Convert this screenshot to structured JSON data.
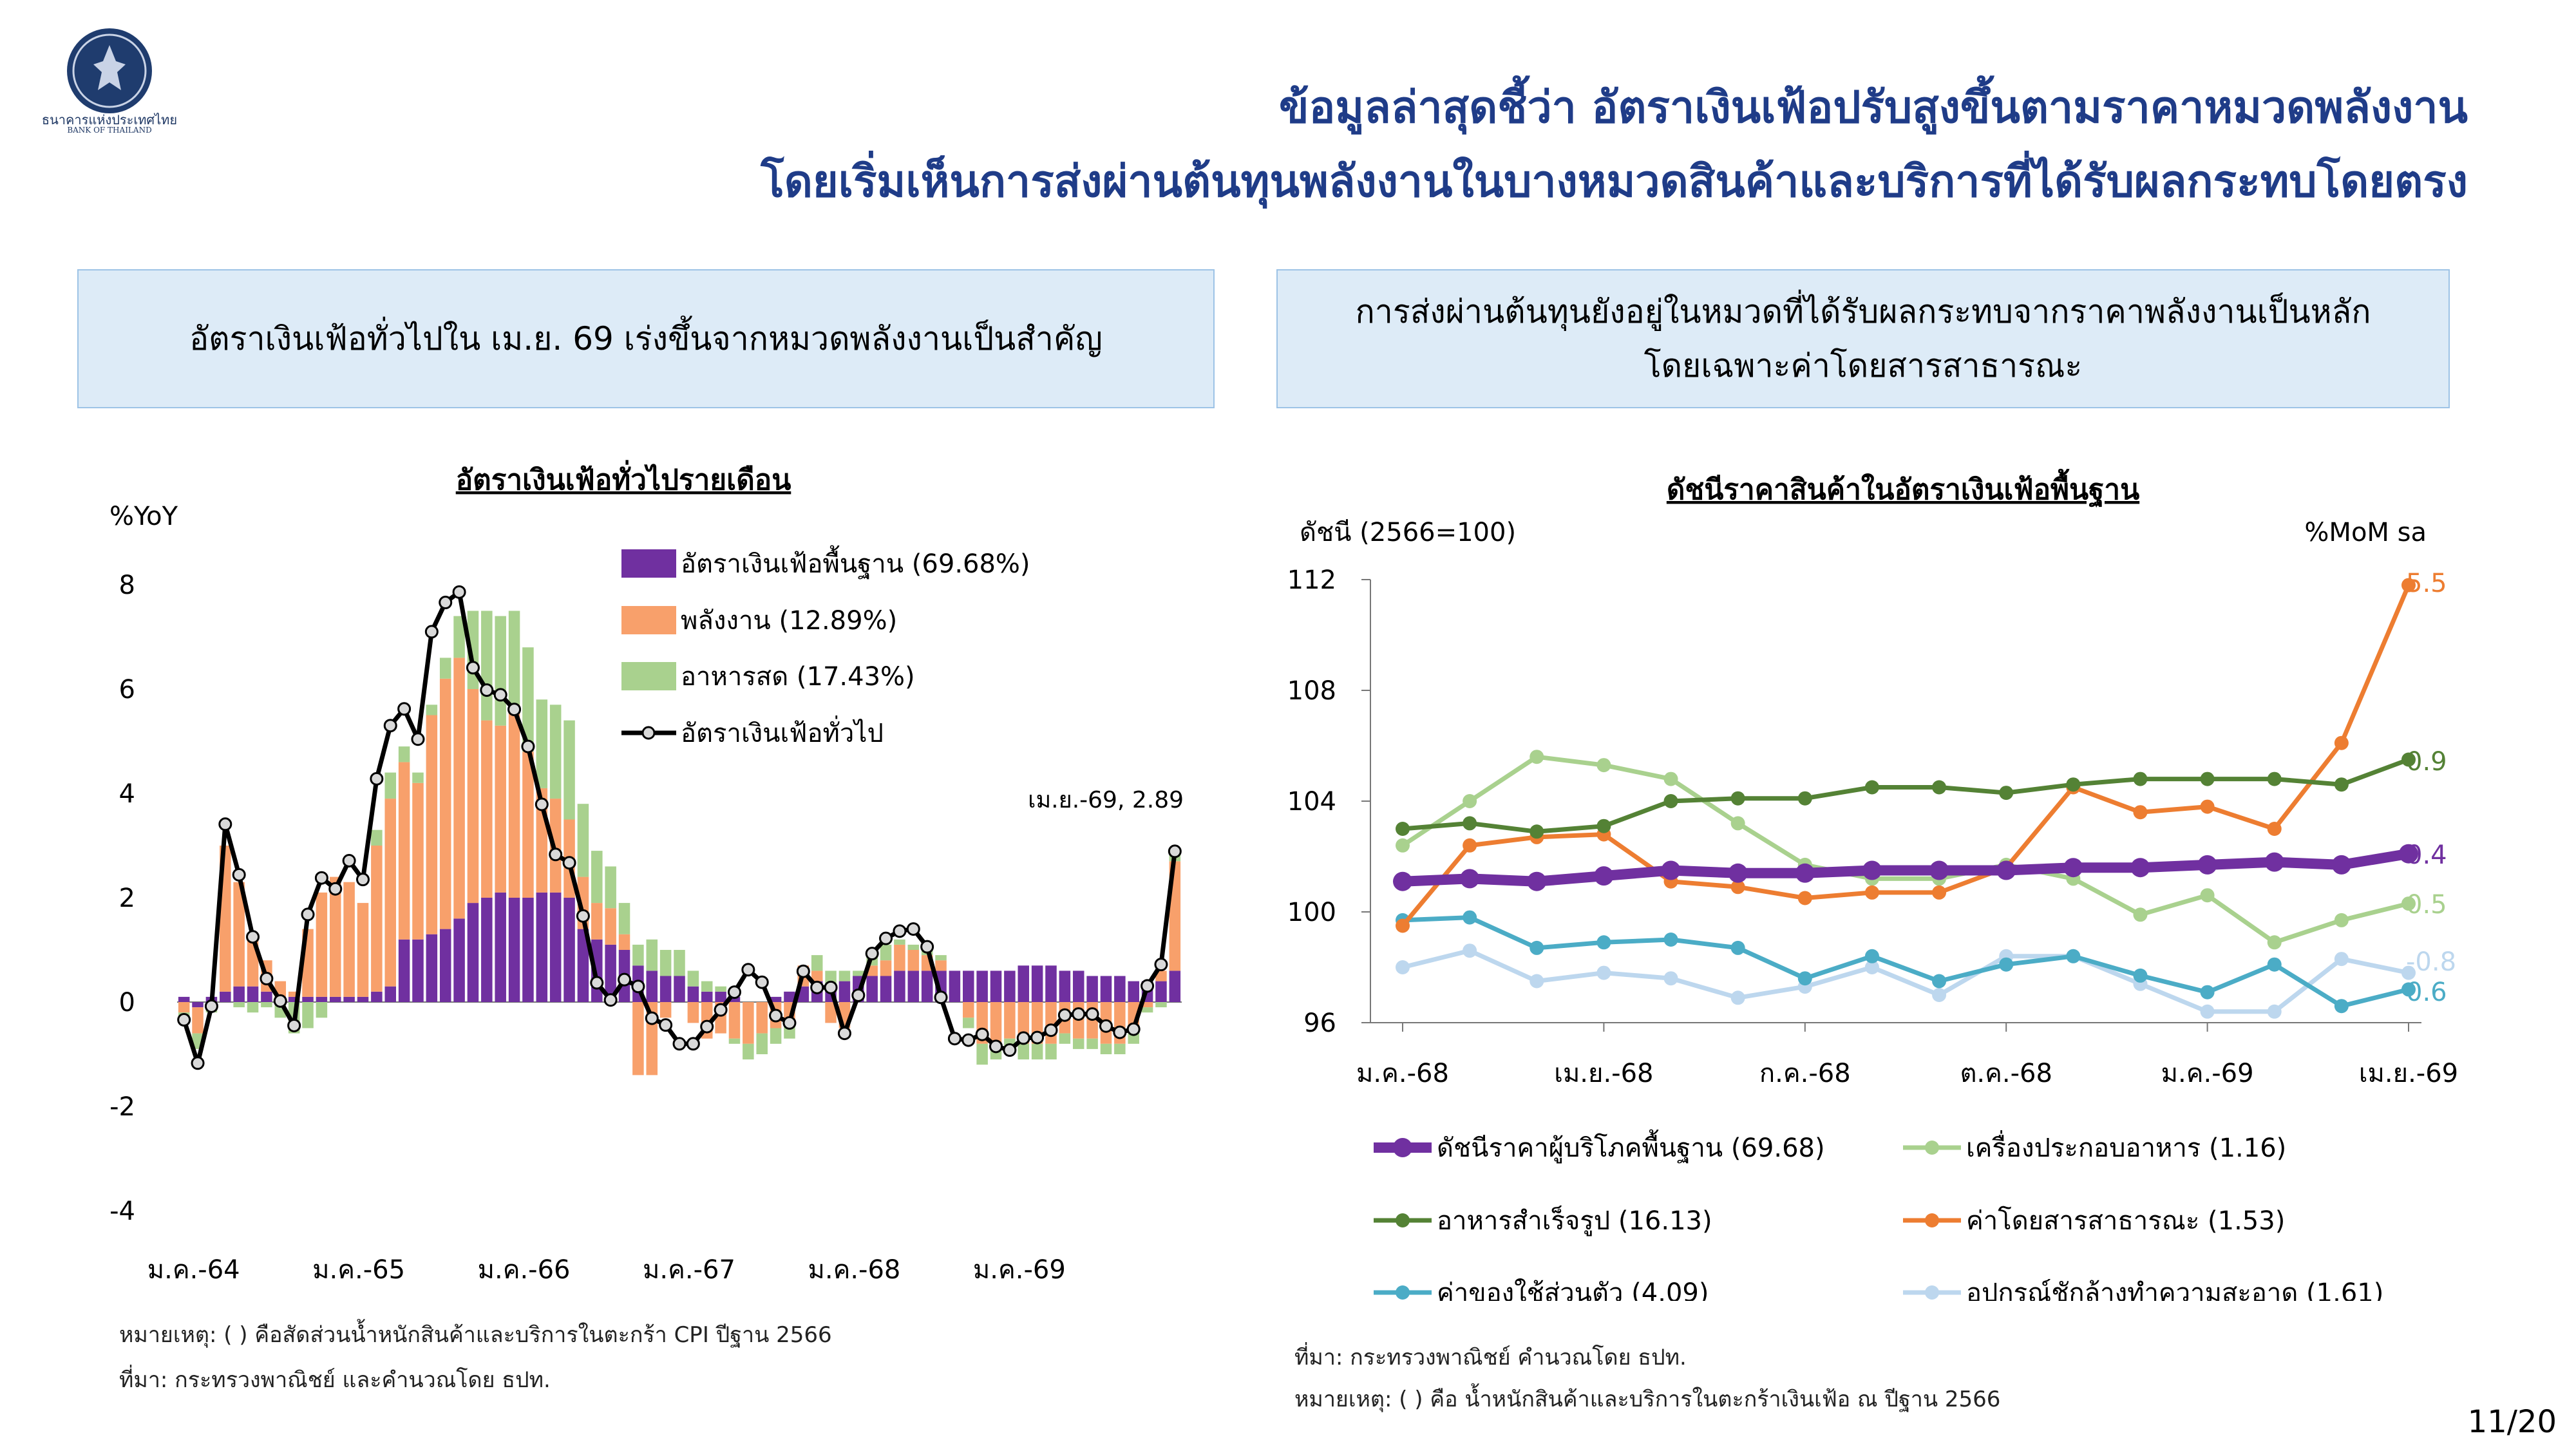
{
  "logo": {
    "name_th": "ธนาคารแห่งประเทศไทย",
    "name_en": "BANK OF THAILAND"
  },
  "title": {
    "line1": "ข้อมูลล่าสุดชี้ว่า อัตราเงินเฟ้อปรับสูงขึ้นตามราคาหมวดพลังงาน",
    "line2": "โดยเริ่มเห็นการส่งผ่านต้นทุนพลังงานในบางหมวดสินค้าและบริการที่ได้รับผลกระทบโดยตรง"
  },
  "left_box": {
    "text": "อัตราเงินเฟ้อทั่วไปใน เม.ย. 69 เร่งขึ้นจากหมวดพลังงานเป็นสำคัญ"
  },
  "right_box": {
    "line1": "การส่งผ่านต้นทุนยังอยู่ในหมวดที่ได้รับผลกระทบจากราคาพลังงานเป็นหลัก",
    "line2": "โดยเฉพาะค่าโดยสารสาธารณะ"
  },
  "left_notes": {
    "note": "หมายเหตุ: ( ) คือสัดส่วนน้ำหนักสินค้าและบริการในตะกร้า CPI ปีฐาน 2566",
    "source": "ที่มา: กระทรวงพาณิชย์ และคำนวณโดย ธปท."
  },
  "right_notes": {
    "source": "ที่มา: กระทรวงพาณิชย์ คำนวณโดย ธปท.",
    "note": "หมายเหตุ: ( ) คือ น้ำหนักสินค้าและบริการในตะกร้าเงินเฟ้อ ณ ปีฐาน 2566"
  },
  "page": "11/20",
  "chart_data": [
    {
      "type": "bar",
      "title": "อัตราเงินเฟ้อทั่วไปรายเดือน",
      "ylabel": "%YoY",
      "ylim": [
        -4,
        8
      ],
      "yticks": [
        -4,
        -2,
        0,
        2,
        4,
        6,
        8
      ],
      "xtick_labels": [
        "ม.ค.-64",
        "ม.ค.-65",
        "ม.ค.-66",
        "ม.ค.-67",
        "ม.ค.-68",
        "ม.ค.-69"
      ],
      "stacked": true,
      "annotation": "เม.ย.-69, 2.89",
      "series": [
        {
          "name": "อัตราเงินเฟ้อพื้นฐาน (69.68%)",
          "kind": "bar",
          "color": "#7030a0",
          "values": [
            0.1,
            -0.1,
            0.1,
            0.2,
            0.3,
            0.3,
            0.2,
            0.1,
            0.1,
            0.1,
            0.1,
            0.1,
            0.1,
            0.1,
            0.2,
            0.3,
            1.2,
            1.2,
            1.3,
            1.4,
            1.6,
            1.9,
            2.0,
            2.1,
            2.0,
            2.0,
            2.1,
            2.1,
            2.0,
            1.4,
            1.2,
            1.1,
            1.0,
            0.7,
            0.6,
            0.5,
            0.5,
            0.3,
            0.2,
            0.2,
            0.1,
            0.0,
            0.0,
            0.1,
            0.2,
            0.3,
            0.4,
            0.3,
            0.4,
            0.5,
            0.5,
            0.5,
            0.6,
            0.6,
            0.6,
            0.6,
            0.6,
            0.6,
            0.6,
            0.6,
            0.6,
            0.7,
            0.7,
            0.7,
            0.6,
            0.6,
            0.5,
            0.5,
            0.5,
            0.4,
            0.4,
            0.4,
            0.6
          ]
        },
        {
          "name": "พลังงาน (12.89%)",
          "kind": "bar",
          "color": "#f8a06b",
          "values": [
            -0.2,
            -0.5,
            0.0,
            2.8,
            2.0,
            1.0,
            0.6,
            0.3,
            0.1,
            1.3,
            2.0,
            2.3,
            2.2,
            1.8,
            2.8,
            3.6,
            3.4,
            3.0,
            4.2,
            4.8,
            5.0,
            4.1,
            3.4,
            3.2,
            3.7,
            2.8,
            2.0,
            1.8,
            1.5,
            1.0,
            0.7,
            0.7,
            0.3,
            -1.4,
            -1.4,
            -0.3,
            0.0,
            -0.4,
            -0.7,
            -0.6,
            -0.7,
            -0.8,
            -0.6,
            -0.5,
            -0.4,
            0.4,
            0.2,
            -0.4,
            -0.5,
            0.0,
            0.2,
            0.3,
            0.5,
            0.4,
            0.3,
            0.2,
            0.0,
            -0.3,
            -0.8,
            -0.8,
            -0.7,
            -0.8,
            -0.8,
            -0.8,
            -0.6,
            -0.7,
            -0.7,
            -0.8,
            -0.8,
            -0.5,
            -0.1,
            0.2,
            2.1
          ]
        },
        {
          "name": "อาหารสด (17.43%)",
          "kind": "bar",
          "color": "#a9d18e",
          "values": [
            -0.2,
            -0.3,
            -0.2,
            0.0,
            -0.1,
            -0.2,
            -0.1,
            -0.3,
            -0.6,
            -0.5,
            -0.3,
            0.0,
            0.0,
            0.0,
            0.3,
            0.5,
            0.3,
            0.2,
            0.2,
            0.4,
            0.8,
            1.5,
            2.1,
            2.1,
            1.8,
            2.0,
            1.7,
            1.8,
            1.9,
            1.4,
            1.0,
            0.8,
            0.6,
            0.4,
            0.6,
            0.5,
            0.5,
            0.3,
            0.2,
            0.1,
            -0.1,
            -0.3,
            -0.4,
            -0.3,
            -0.3,
            0.0,
            0.3,
            0.3,
            0.2,
            0.1,
            0.2,
            0.3,
            0.1,
            0.1,
            0.2,
            0.1,
            0.0,
            -0.2,
            -0.4,
            -0.3,
            -0.2,
            -0.3,
            -0.3,
            -0.3,
            -0.2,
            -0.2,
            -0.2,
            -0.2,
            -0.2,
            -0.3,
            -0.1,
            -0.1,
            0.2
          ]
        },
        {
          "name": "อัตราเงินเฟ้อทั่วไป",
          "kind": "line",
          "color": "#000000",
          "values": [
            -0.34,
            -1.17,
            -0.08,
            3.41,
            2.44,
            1.25,
            0.45,
            0.02,
            -0.45,
            1.68,
            2.38,
            2.17,
            2.71,
            2.35,
            4.28,
            5.3,
            5.62,
            5.04,
            7.1,
            7.66,
            7.86,
            6.41,
            5.98,
            5.89,
            5.61,
            4.9,
            3.79,
            2.83,
            2.67,
            1.65,
            0.37,
            0.04,
            0.43,
            0.3,
            -0.31,
            -0.44,
            -0.8,
            -0.8,
            -0.47,
            -0.15,
            0.19,
            0.62,
            0.38,
            -0.26,
            -0.4,
            0.59,
            0.28,
            0.28,
            -0.6,
            0.13,
            0.93,
            1.22,
            1.36,
            1.4,
            1.06,
            0.09,
            -0.7,
            -0.73,
            -0.62,
            -0.85,
            -0.92,
            -0.69,
            -0.68,
            -0.54,
            -0.25,
            -0.23,
            -0.23,
            -0.46,
            -0.58,
            -0.52,
            0.31,
            0.72,
            2.89
          ]
        }
      ]
    },
    {
      "type": "line",
      "title": "ดัชนีราคาสินค้าในอัตราเงินเฟ้อพื้นฐาน",
      "ylabel": "ดัชนี (2566=100)",
      "y2label": "%MoM sa",
      "ylim": [
        96,
        112
      ],
      "yticks": [
        96,
        100,
        104,
        108,
        112
      ],
      "xtick_labels": [
        "ม.ค.-68",
        "เม.ย.-68",
        "ก.ค.-68",
        "ต.ค.-68",
        "ม.ค.-69",
        "เม.ย.-69"
      ],
      "legend": "bottom",
      "series": [
        {
          "name": "ดัชนีราคาผู้บริโภคพื้นฐาน (69.68)",
          "color": "#7030a0",
          "end_label": "0.4",
          "values": [
            101.1,
            101.2,
            101.1,
            101.3,
            101.5,
            101.4,
            101.4,
            101.5,
            101.5,
            101.5,
            101.6,
            101.6,
            101.7,
            101.8,
            101.7,
            102.1
          ]
        },
        {
          "name": "เครื่องประกอบอาหาร (1.16)",
          "color": "#a9d18e",
          "end_label": "0.5",
          "values": [
            102.4,
            104.0,
            105.6,
            105.3,
            104.8,
            103.2,
            101.7,
            101.2,
            101.2,
            101.7,
            101.2,
            99.9,
            100.6,
            98.9,
            99.7,
            100.3
          ]
        },
        {
          "name": "อาหารสำเร็จรูป (16.13)",
          "color": "#548235",
          "end_label": "0.9",
          "values": [
            103.0,
            103.2,
            102.9,
            103.1,
            104.0,
            104.1,
            104.1,
            104.5,
            104.5,
            104.3,
            104.6,
            104.8,
            104.8,
            104.8,
            104.6,
            105.5
          ]
        },
        {
          "name": "ค่าโดยสารสาธารณะ (1.53)",
          "color": "#ed7d31",
          "end_label": "5.5",
          "values": [
            99.5,
            102.4,
            102.7,
            102.8,
            101.1,
            100.9,
            100.5,
            100.7,
            100.7,
            101.6,
            104.5,
            103.6,
            103.8,
            103.0,
            106.1,
            111.8
          ]
        },
        {
          "name": "ค่าของใช้ส่วนตัว (4.09)",
          "color": "#4bacc6",
          "end_label": "0.6",
          "values": [
            99.7,
            99.8,
            98.7,
            98.9,
            99.0,
            98.7,
            97.6,
            98.4,
            97.5,
            98.1,
            98.4,
            97.7,
            97.1,
            98.1,
            96.6,
            97.2
          ]
        },
        {
          "name": "อุปกรณ์ชักล้างทำความสะอาด (1.61)",
          "color": "#bdd7ee",
          "end_label": "-0.8",
          "values": [
            98.0,
            98.6,
            97.5,
            97.8,
            97.6,
            96.9,
            97.3,
            98.0,
            97.0,
            98.4,
            98.4,
            97.4,
            96.4,
            96.4,
            98.3,
            97.8
          ]
        }
      ]
    }
  ]
}
